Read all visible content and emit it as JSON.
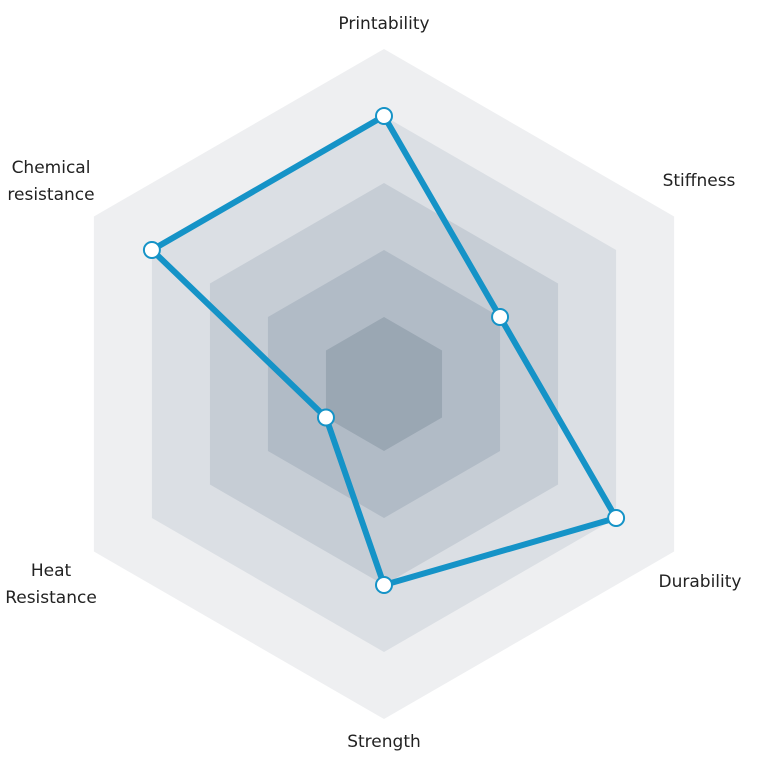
{
  "chart_data": {
    "type": "radar",
    "axes": [
      {
        "label": [
          "Printability"
        ]
      },
      {
        "label": [
          "Stiffness"
        ]
      },
      {
        "label": [
          "Durability"
        ]
      },
      {
        "label": [
          "Strength"
        ]
      },
      {
        "label": [
          "Heat",
          "Resistance"
        ]
      },
      {
        "label": [
          "Chemical",
          "resistance"
        ]
      }
    ],
    "levels": 5,
    "range": [
      0,
      5
    ],
    "series": [
      {
        "values": [
          4.0,
          2.0,
          4.0,
          3.0,
          1.0,
          4.0
        ]
      }
    ],
    "colors": {
      "line": "#1593c7",
      "marker_fill": "#ffffff",
      "rings": [
        "#eeeff1",
        "#dbdfe4",
        "#c6cdd5",
        "#b1bbc6",
        "#9aa7b3"
      ]
    }
  }
}
